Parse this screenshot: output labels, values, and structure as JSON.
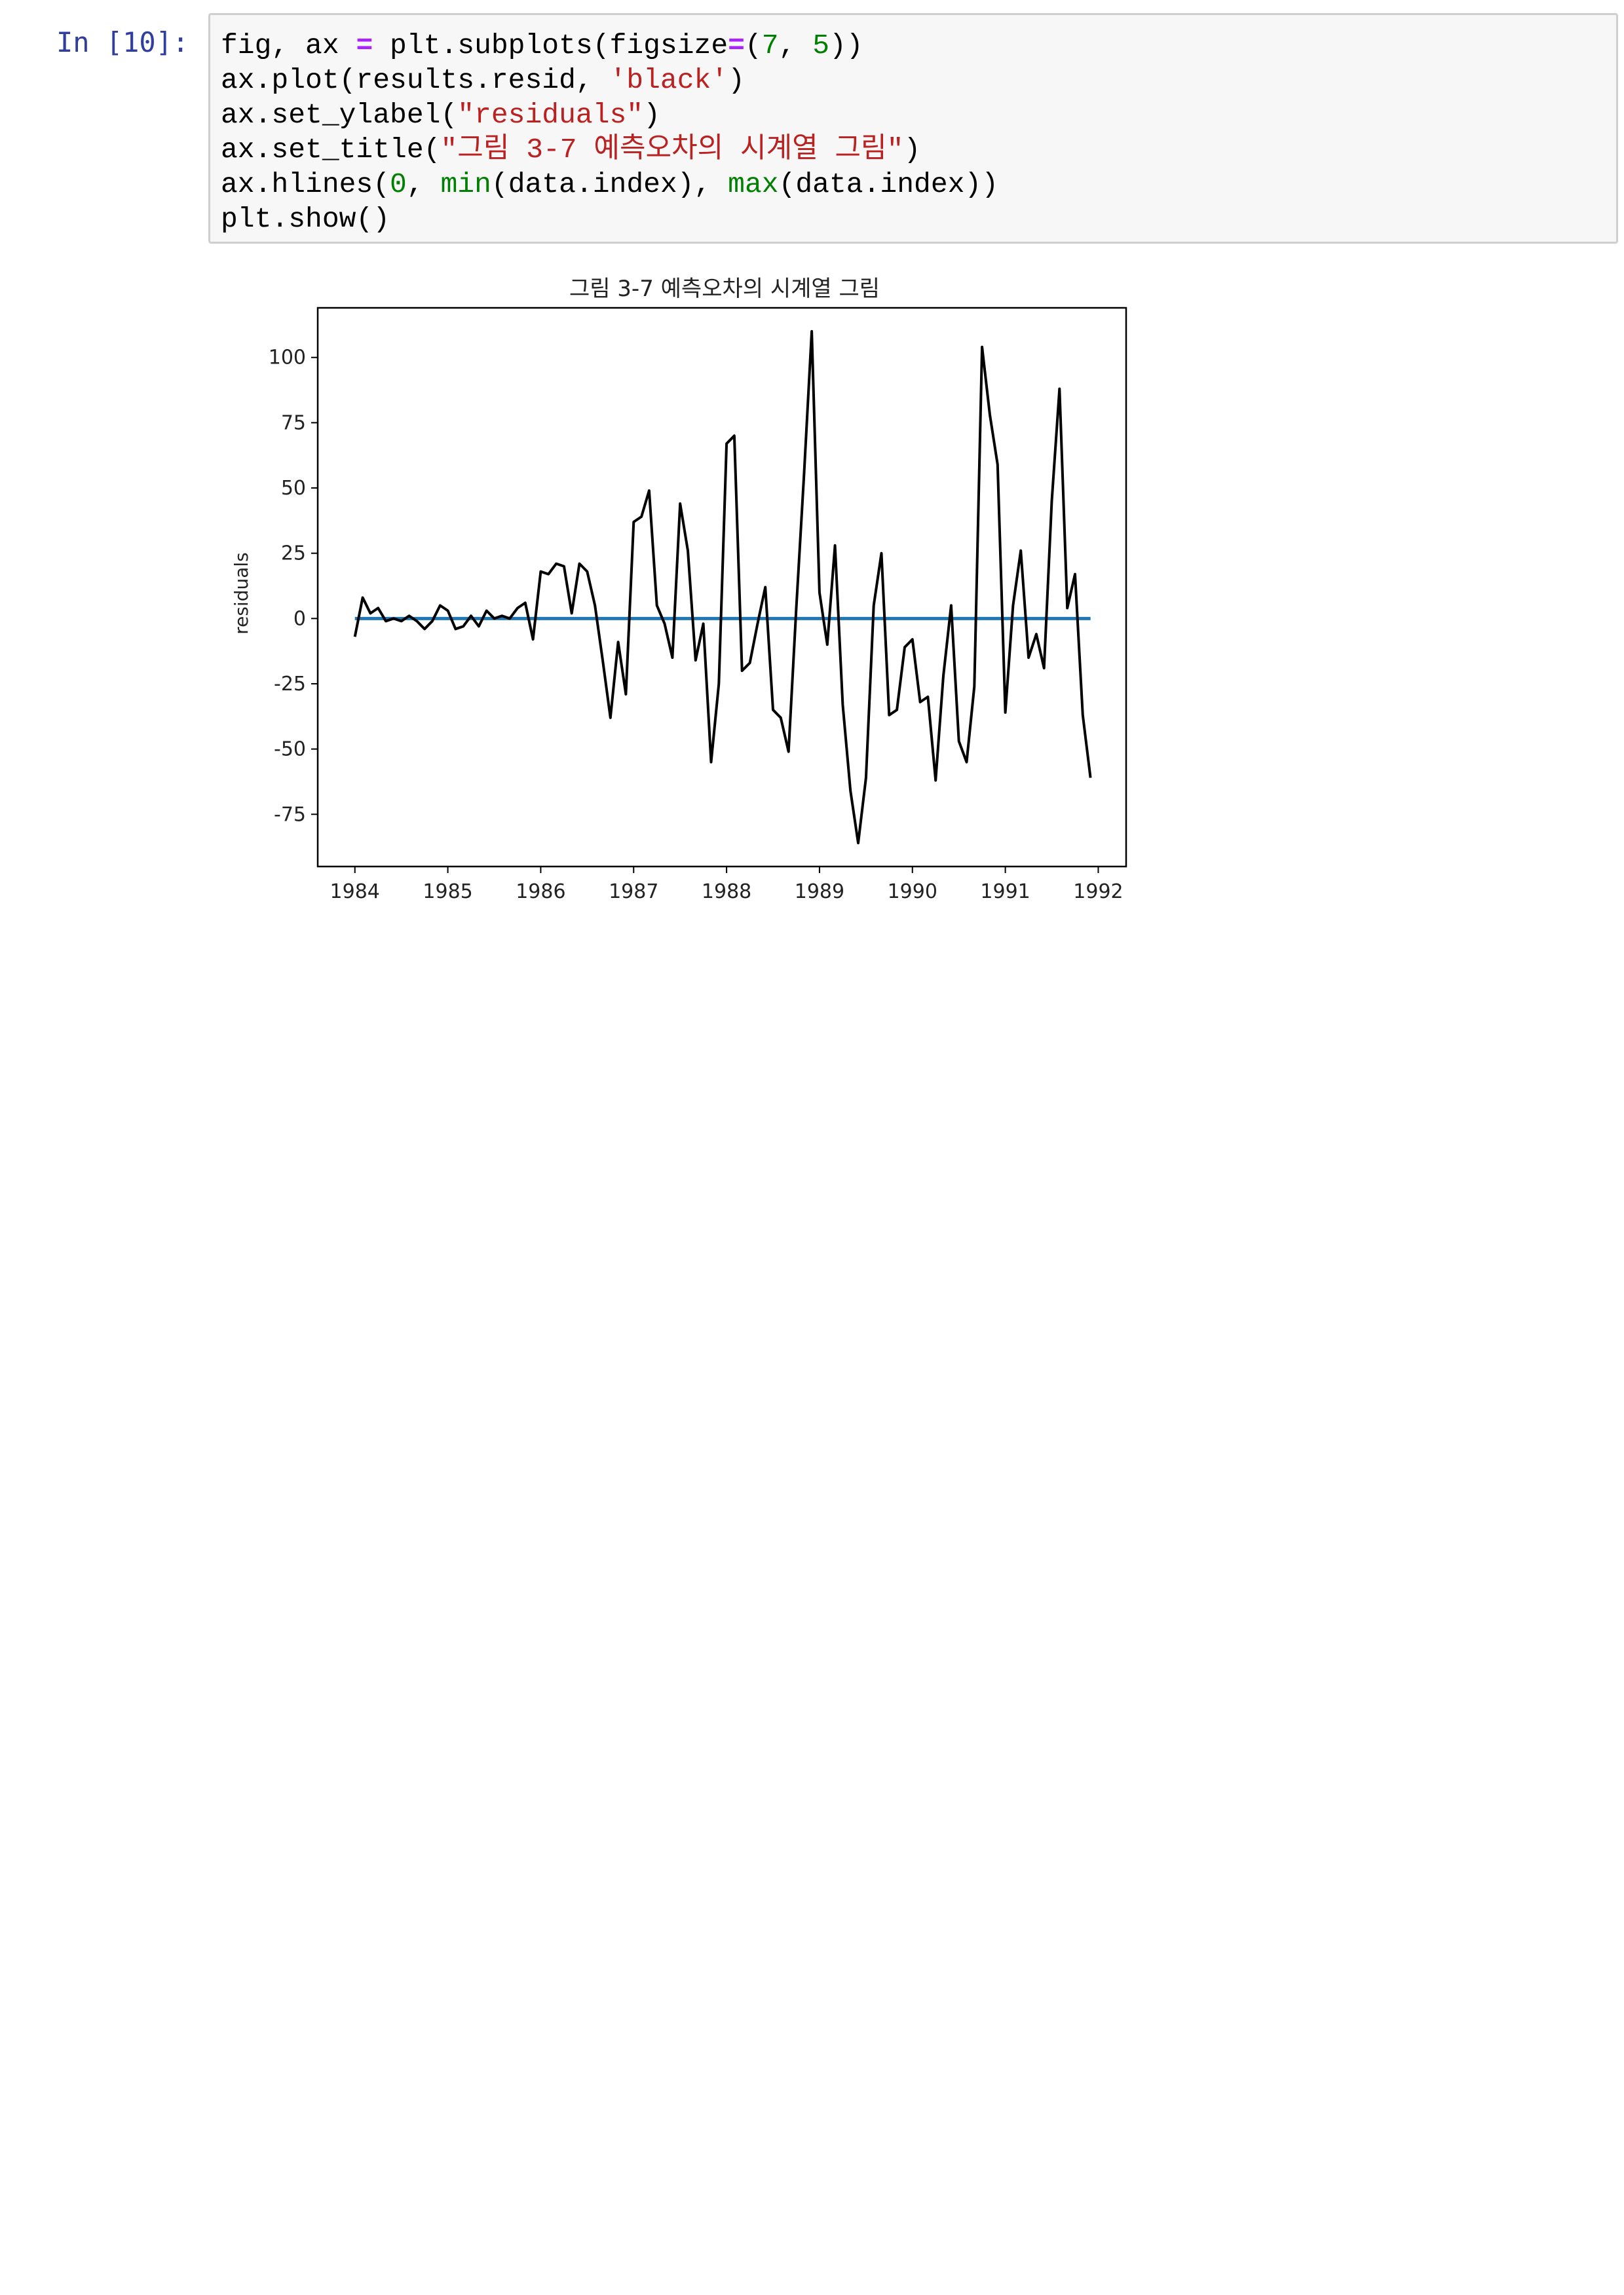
{
  "notebook": {
    "cell_prompt": "In [10]:",
    "code": {
      "line1": {
        "a": "fig, ax ",
        "op": "=",
        "b": " plt.subplots(figsize",
        "op2": "=",
        "c": "(",
        "n1": "7",
        "d": ", ",
        "n2": "5",
        "e": "))"
      },
      "line2": {
        "a": "ax.plot(results.resid, ",
        "s": "'black'",
        "b": ")"
      },
      "line3": {
        "a": "ax.set_ylabel(",
        "s": "\"residuals\"",
        "b": ")"
      },
      "line4": {
        "a": "ax.set_title(",
        "s": "\"그림 3-7 예측오차의 시계열 그림\"",
        "b": ")"
      },
      "line5": {
        "a": "ax.hlines(",
        "n": "0",
        "b": ", ",
        "f1": "min",
        "c": "(data.index), ",
        "f2": "max",
        "d": "(data.index))"
      },
      "line6": {
        "a": "plt.show()"
      }
    }
  },
  "chart_data": {
    "type": "line",
    "title": "그림 3-7 예측오차의 시계열 그림",
    "xlabel": "",
    "ylabel": "residuals",
    "xlim": [
      1983.6,
      1992.3
    ],
    "ylim": [
      -95,
      119
    ],
    "xticks": [
      "1984",
      "1985",
      "1986",
      "1987",
      "1988",
      "1989",
      "1990",
      "1991",
      "1992"
    ],
    "yticks": [
      "-75",
      "-50",
      "-25",
      "0",
      "25",
      "50",
      "75",
      "100"
    ],
    "grid": false,
    "colors": {
      "series": "#000000",
      "hline": "#1f77b4"
    },
    "hline": {
      "y": 0,
      "xmin": 1984.0,
      "xmax": 1991.917
    },
    "series": [
      {
        "values": [
          -7,
          8,
          2,
          4,
          -1,
          0,
          -1,
          1,
          -1,
          -4,
          -1,
          5,
          3,
          -4,
          -3,
          1,
          -3,
          3,
          0,
          1,
          0,
          4,
          6,
          -8,
          18,
          17,
          21,
          20,
          2,
          21,
          18,
          5,
          -16,
          -38,
          -9,
          -29,
          37,
          39,
          49,
          5,
          -2,
          -15,
          44,
          26,
          -16,
          -2,
          -55,
          -25,
          67,
          70,
          -20,
          -17,
          -2,
          12,
          -35,
          -38,
          -51,
          4,
          55,
          110,
          10,
          -10,
          28,
          -33,
          -66,
          -86,
          -61,
          5,
          25,
          -37,
          -35,
          -11,
          -8,
          -32,
          -30,
          -62,
          -22,
          5,
          -47,
          -55,
          -26,
          104,
          78,
          59,
          -36,
          5,
          26,
          -15,
          -6,
          -19,
          45,
          88,
          4,
          17,
          -37,
          -61
        ],
        "x_start": 1984.0,
        "x_step_months": 1
      }
    ]
  }
}
